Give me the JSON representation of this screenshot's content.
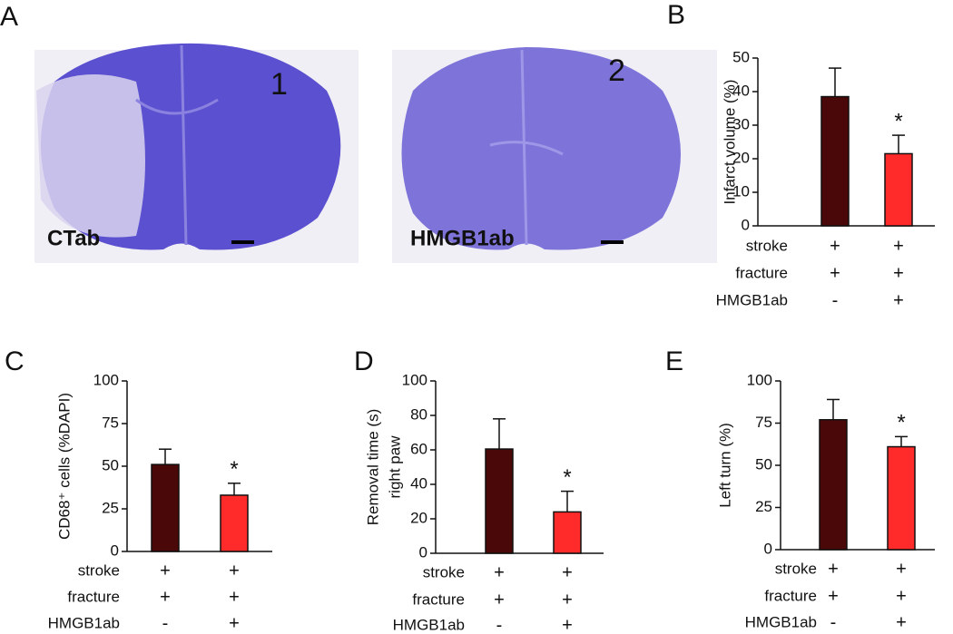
{
  "images": {
    "label": "A",
    "items": [
      {
        "number": "1",
        "caption": "CTab"
      },
      {
        "number": "2",
        "caption": "HMGB1ab"
      }
    ]
  },
  "chart_data": [
    {
      "type": "bar",
      "label": "B",
      "ylabel": [
        "Infarct volume (%)"
      ],
      "values": [
        38.5,
        21.5
      ],
      "errors": [
        8.5,
        5.5
      ],
      "colors": [
        "#4a0808",
        "#ff2a2a"
      ],
      "markers": [
        null,
        "*"
      ],
      "ylim": [
        0,
        50
      ],
      "yticks": [
        0,
        10,
        20,
        30,
        40,
        50
      ],
      "conditions": [
        {
          "name": "stroke",
          "levels": [
            "+",
            "+"
          ]
        },
        {
          "name": "fracture",
          "levels": [
            "+",
            "+"
          ]
        },
        {
          "name": "HMGB1ab",
          "levels": [
            "-",
            "+"
          ]
        }
      ]
    },
    {
      "type": "bar",
      "label": "C",
      "ylabel": [
        "CD68⁺ cells (%DAPI)"
      ],
      "values": [
        51,
        33
      ],
      "errors": [
        9,
        7
      ],
      "colors": [
        "#4a0808",
        "#ff2a2a"
      ],
      "markers": [
        null,
        "*"
      ],
      "ylim": [
        0,
        100
      ],
      "yticks": [
        0,
        25,
        50,
        75,
        100
      ],
      "conditions": [
        {
          "name": "stroke",
          "levels": [
            "+",
            "+"
          ]
        },
        {
          "name": "fracture",
          "levels": [
            "+",
            "+"
          ]
        },
        {
          "name": "HMGB1ab",
          "levels": [
            "-",
            "+"
          ]
        }
      ]
    },
    {
      "type": "bar",
      "label": "D",
      "ylabel": [
        "Removal time (s)",
        "right paw"
      ],
      "values": [
        60.5,
        24
      ],
      "errors": [
        17.5,
        12
      ],
      "colors": [
        "#4a0808",
        "#ff2a2a"
      ],
      "markers": [
        null,
        "*"
      ],
      "ylim": [
        0,
        100
      ],
      "yticks": [
        0,
        20,
        40,
        60,
        80,
        100
      ],
      "conditions": [
        {
          "name": "stroke",
          "levels": [
            "+",
            "+"
          ]
        },
        {
          "name": "fracture",
          "levels": [
            "+",
            "+"
          ]
        },
        {
          "name": "HMGB1ab",
          "levels": [
            "-",
            "+"
          ]
        }
      ]
    },
    {
      "type": "bar",
      "label": "E",
      "ylabel": [
        "Left turn (%)"
      ],
      "values": [
        77,
        61
      ],
      "errors": [
        12,
        6
      ],
      "colors": [
        "#4a0808",
        "#ff2a2a"
      ],
      "markers": [
        null,
        "*"
      ],
      "ylim": [
        0,
        100
      ],
      "yticks": [
        0,
        25,
        50,
        75,
        100
      ],
      "conditions": [
        {
          "name": "stroke",
          "levels": [
            "+",
            "+"
          ]
        },
        {
          "name": "fracture",
          "levels": [
            "+",
            "+"
          ]
        },
        {
          "name": "HMGB1ab",
          "levels": [
            "-",
            "+"
          ]
        }
      ]
    }
  ]
}
